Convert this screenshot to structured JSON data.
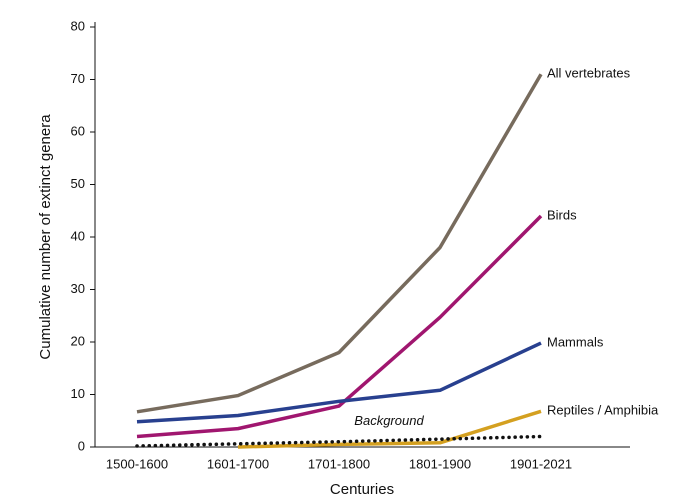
{
  "chart_data": {
    "type": "line",
    "x_label": "Centuries",
    "y_label": "Cumulative number of extinct genera",
    "categories": [
      "1500-1600",
      "1601-1700",
      "1701-1800",
      "1801-1900",
      "1901-2021"
    ],
    "ylim": [
      0,
      80
    ],
    "yticks": [
      0,
      10,
      20,
      30,
      40,
      50,
      60,
      70,
      80
    ],
    "series": [
      {
        "name": "All vertebrates",
        "color": "#776b5d",
        "values": [
          6.7,
          9.8,
          18,
          38,
          71
        ]
      },
      {
        "name": "Birds",
        "color": "#a0166f",
        "values": [
          2,
          3.5,
          7.8,
          24.7,
          44
        ]
      },
      {
        "name": "Mammals",
        "color": "#28408f",
        "values": [
          4.8,
          6,
          8.7,
          10.8,
          19.8
        ]
      },
      {
        "name": "Reptiles / Amphibia",
        "color": "#d4a020",
        "values": [
          null,
          0,
          0.5,
          0.8,
          6.8
        ]
      },
      {
        "name": "Background",
        "color": "#111111",
        "style": "dotted",
        "values": [
          0.2,
          0.6,
          1,
          1.5,
          2
        ]
      }
    ]
  }
}
